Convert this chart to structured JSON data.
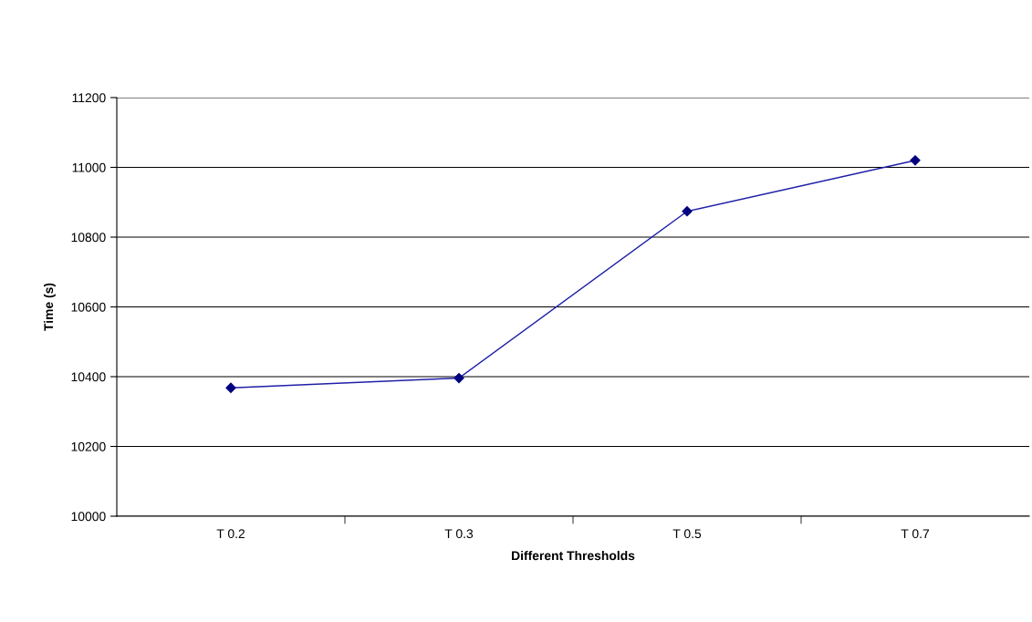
{
  "chart_data": {
    "type": "line",
    "xlabel": "Different Thresholds",
    "ylabel": "Time (s)",
    "categories": [
      "T 0.2",
      "T 0.3",
      "T 0.5",
      "T 0.7"
    ],
    "series": [
      {
        "color": "#1f1fa8",
        "values": [
          10368,
          10396,
          10874,
          11020
        ]
      }
    ],
    "ylim": [
      10000,
      11200
    ],
    "yticks": [
      10000,
      10200,
      10400,
      10600,
      10800,
      11000,
      11200
    ],
    "grid": "y",
    "marker": "diamond",
    "line_style": "solid"
  }
}
